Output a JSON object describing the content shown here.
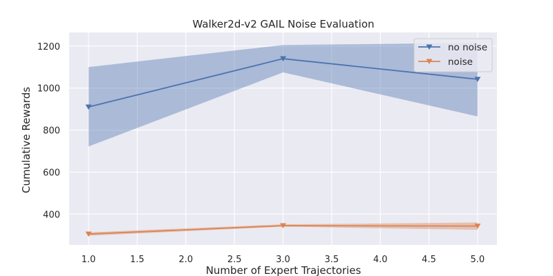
{
  "chart_data": {
    "type": "line",
    "title": "Walker2d-v2 GAIL Noise Evaluation",
    "xlabel": "Number of Expert Trajectories",
    "ylabel": "Cumulative Rewards",
    "xlim": [
      0.8,
      5.2
    ],
    "ylim": [
      253,
      1265
    ],
    "xticks": [
      1.0,
      1.5,
      2.0,
      2.5,
      3.0,
      3.5,
      4.0,
      4.5,
      5.0
    ],
    "xtick_labels": [
      "1.0",
      "1.5",
      "2.0",
      "2.5",
      "3.0",
      "3.5",
      "4.0",
      "4.5",
      "5.0"
    ],
    "yticks": [
      400,
      600,
      800,
      1000,
      1200
    ],
    "ytick_labels": [
      "400",
      "600",
      "800",
      "1000",
      "1200"
    ],
    "grid": true,
    "legend_position": "top-right",
    "x": [
      1,
      3,
      5
    ],
    "series": [
      {
        "name": "no noise",
        "color": "#4c72b0",
        "marker": "triangle-down",
        "values": [
          910,
          1140,
          1042
        ],
        "band_lower": [
          722,
          1075,
          865
        ],
        "band_upper": [
          1100,
          1205,
          1215
        ]
      },
      {
        "name": "noise",
        "color": "#dd8452",
        "marker": "triangle-down",
        "values": [
          305,
          345,
          343
        ],
        "band_lower": [
          297,
          340,
          325
        ],
        "band_upper": [
          313,
          351,
          360
        ]
      }
    ]
  }
}
